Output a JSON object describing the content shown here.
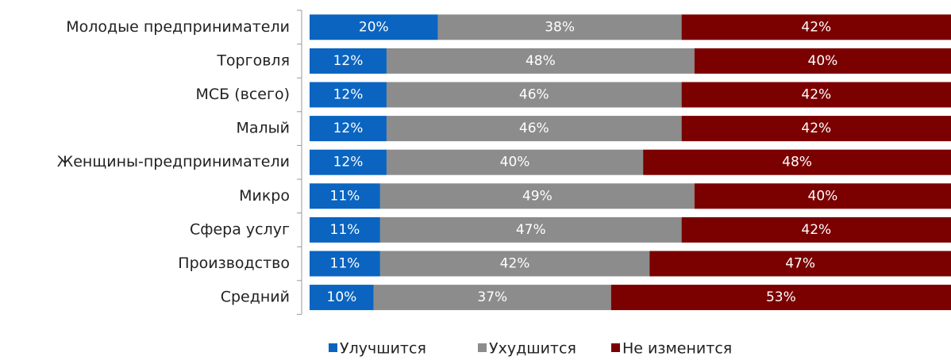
{
  "chart_data": {
    "type": "stacked-bar-horizontal",
    "categories": [
      "Молодые предприниматели",
      "Торговля",
      "МСБ (всего)",
      "Малый",
      "Женщины-предприниматели",
      "Микро",
      "Сфера услуг",
      "Производство",
      "Средний"
    ],
    "series": [
      {
        "name": "Улучшится",
        "color": "#0a64c0",
        "values": [
          20,
          12,
          12,
          12,
          12,
          11,
          11,
          11,
          10
        ],
        "value_labels": [
          "20%",
          "12%",
          "12%",
          "12%",
          "12%",
          "11%",
          "11%",
          "11%",
          "10%"
        ]
      },
      {
        "name": "Ухудшится",
        "color": "#8c8c8c",
        "values": [
          38,
          48,
          46,
          46,
          40,
          49,
          47,
          42,
          37
        ],
        "value_labels": [
          "38%",
          "48%",
          "46%",
          "46%",
          "40%",
          "49%",
          "47%",
          "42%",
          "37%"
        ]
      },
      {
        "name": "Не изменится",
        "color": "#7b0000",
        "values": [
          42,
          40,
          42,
          42,
          48,
          40,
          42,
          47,
          53
        ],
        "value_labels": [
          "42%",
          "40%",
          "42%",
          "42%",
          "48%",
          "40%",
          "42%",
          "47%",
          "53%"
        ]
      }
    ],
    "xlim": [
      0,
      100
    ],
    "legend": "bottom"
  }
}
